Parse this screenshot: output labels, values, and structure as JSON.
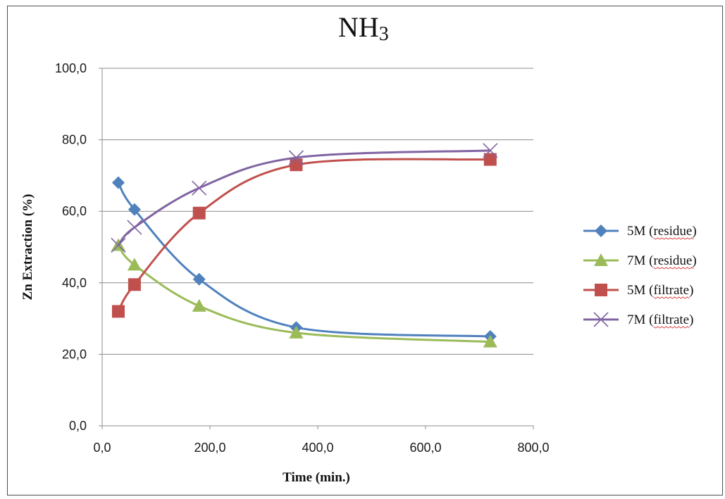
{
  "chart_data": {
    "type": "line",
    "title": "NH3",
    "title_main": "NH",
    "title_sub": "3",
    "xlabel": "Time (min.)",
    "ylabel": "Zn Extraction (%)",
    "xlim": [
      0,
      800
    ],
    "ylim": [
      0,
      100
    ],
    "x_ticks": [
      "0,0",
      "200,0",
      "400,0",
      "600,0",
      "800,0"
    ],
    "y_ticks": [
      "0,0",
      "20,0",
      "40,0",
      "60,0",
      "80,0",
      "100,0"
    ],
    "grid": true,
    "legend_position": "right",
    "series": [
      {
        "name": "5M (residue)",
        "name_prefix": "5M (",
        "name_word": "residue",
        "name_suffix": ")",
        "color": "#4f81bd",
        "marker": "diamond",
        "x": [
          30,
          60,
          180,
          360,
          720
        ],
        "y": [
          68.0,
          60.5,
          41.0,
          27.5,
          25.0
        ]
      },
      {
        "name": "7M (residue)",
        "name_prefix": "7M (",
        "name_word": "residue",
        "name_suffix": ")",
        "color": "#9bbb59",
        "marker": "triangle",
        "x": [
          30,
          60,
          180,
          360,
          720
        ],
        "y": [
          50.5,
          45.0,
          33.5,
          26.0,
          23.5
        ]
      },
      {
        "name": "5M (filtrate)",
        "name_prefix": "5M (",
        "name_word": "filtrate",
        "name_suffix": ")",
        "color": "#c0504d",
        "marker": "square",
        "x": [
          30,
          60,
          180,
          360,
          720
        ],
        "y": [
          32.0,
          39.5,
          59.5,
          73.0,
          74.5
        ]
      },
      {
        "name": "7M (filtrate)",
        "name_prefix": "7M (",
        "name_word": "filtrate",
        "name_suffix": ")",
        "color": "#8064a2",
        "marker": "x",
        "x": [
          30,
          60,
          180,
          360,
          720
        ],
        "y": [
          50.5,
          55.5,
          66.5,
          75.0,
          77.0
        ]
      }
    ]
  }
}
